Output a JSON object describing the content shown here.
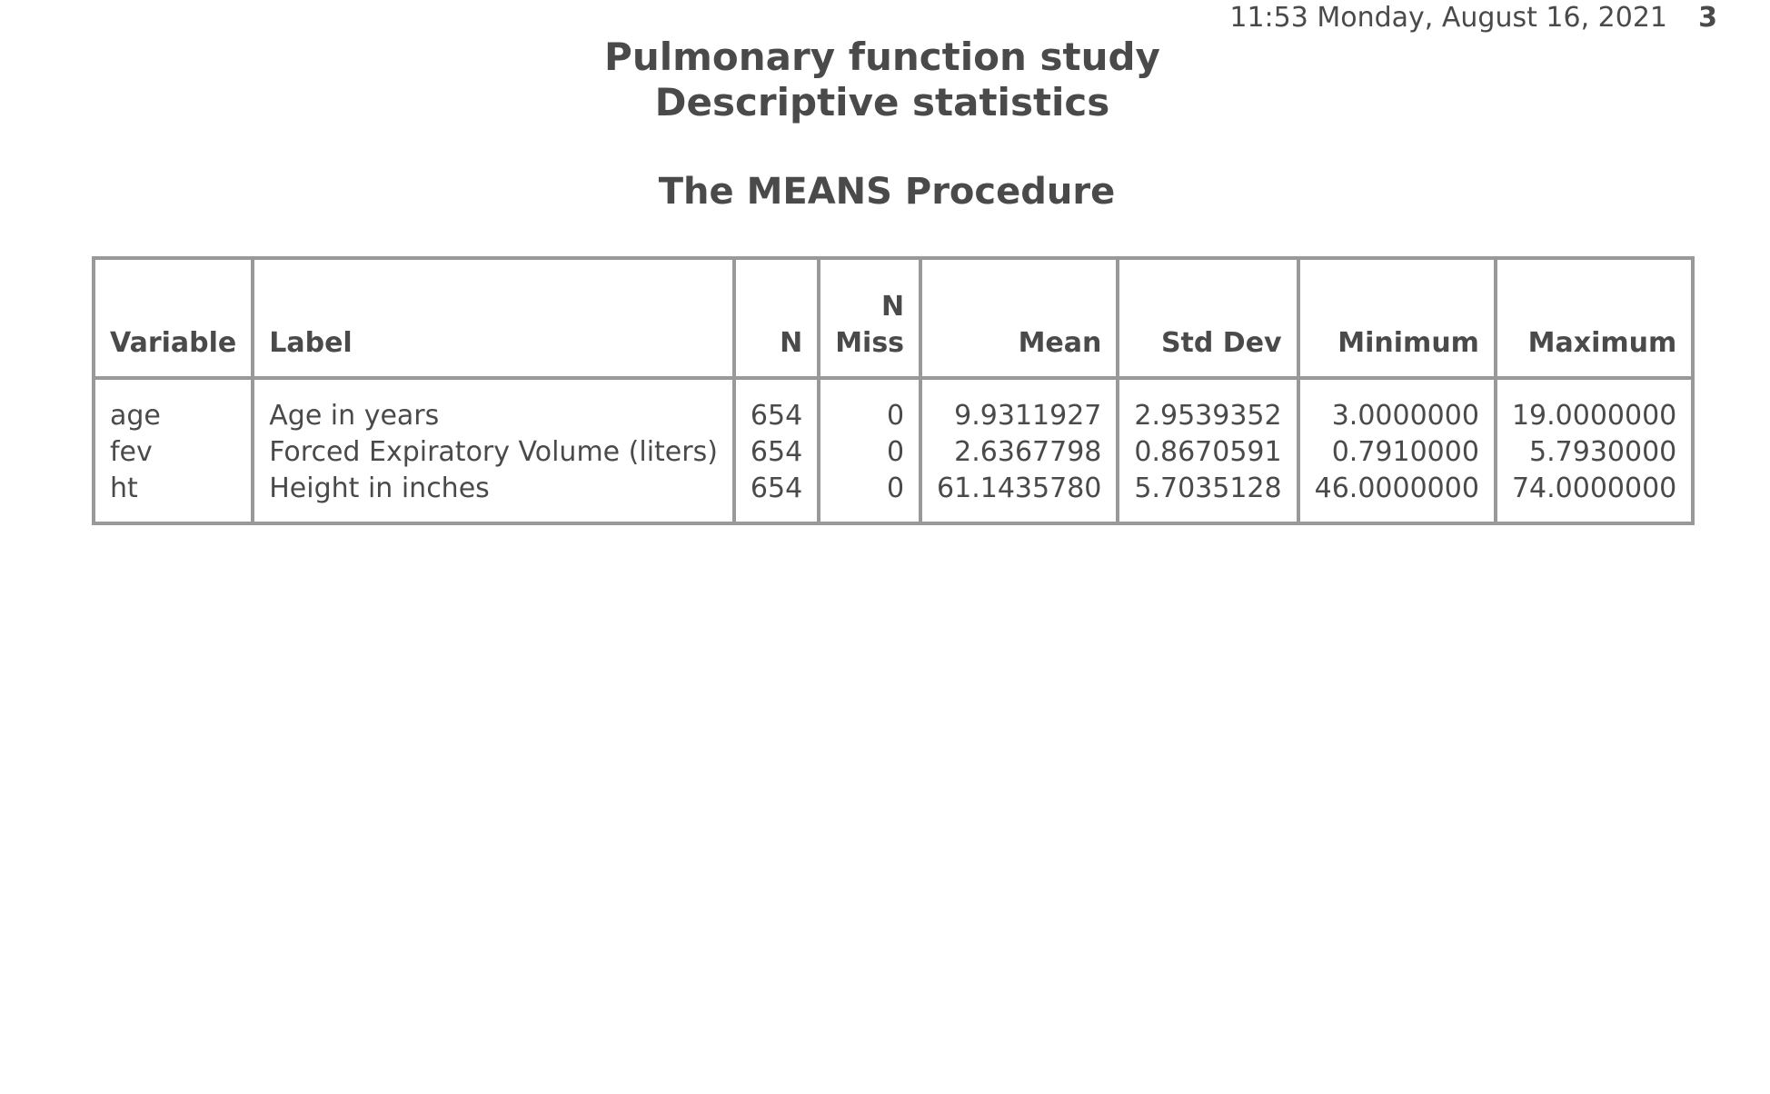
{
  "header": {
    "datetime": "11:53 Monday, August 16, 2021",
    "page_number": "3"
  },
  "titles": {
    "line1": "Pulmonary function study",
    "line2": "Descriptive statistics"
  },
  "procedure_title": "The MEANS Procedure",
  "table": {
    "columns": {
      "variable": "Variable",
      "label": "Label",
      "n": "N",
      "nmiss_top": "N",
      "nmiss_bottom": "Miss",
      "mean": "Mean",
      "std": "Std Dev",
      "min": "Minimum",
      "max": "Maximum"
    },
    "rows": [
      {
        "variable": "age",
        "label": "Age in years",
        "n": "654",
        "nmiss": "0",
        "mean": "9.9311927",
        "std": "2.9539352",
        "min": "3.0000000",
        "max": "19.0000000"
      },
      {
        "variable": "fev",
        "label": "Forced Expiratory Volume (liters)",
        "n": "654",
        "nmiss": "0",
        "mean": "2.6367798",
        "std": "0.8670591",
        "min": "0.7910000",
        "max": "5.7930000"
      },
      {
        "variable": "ht",
        "label": "Height in inches",
        "n": "654",
        "nmiss": "0",
        "mean": "61.1435780",
        "std": "5.7035128",
        "min": "46.0000000",
        "max": "74.0000000"
      }
    ]
  }
}
